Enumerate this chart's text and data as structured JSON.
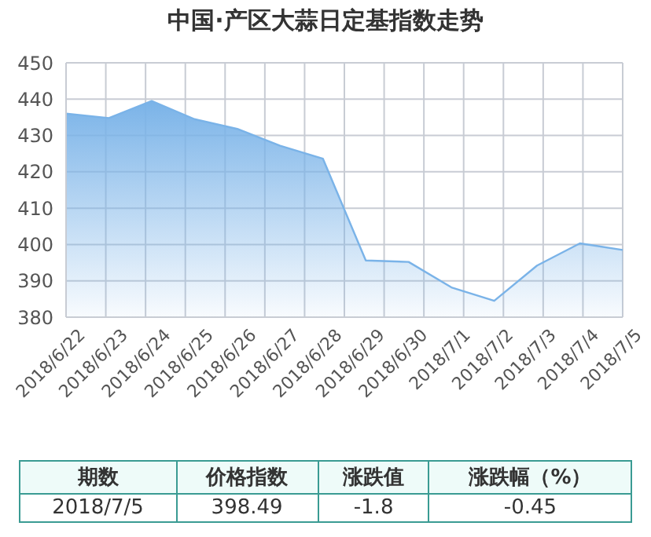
{
  "chart_data": {
    "type": "area",
    "title": "中国·产区大蒜日定基指数走势",
    "categories": [
      "2018/6/22",
      "2018/6/23",
      "2018/6/24",
      "2018/6/25",
      "2018/6/26",
      "2018/6/27",
      "2018/6/28",
      "2018/6/29",
      "2018/6/30",
      "2018/7/1",
      "2018/7/2",
      "2018/7/3",
      "2018/7/4",
      "2018/7/5"
    ],
    "values": [
      436,
      434.8,
      439.5,
      434.5,
      431.8,
      427.2,
      423.6,
      395.6,
      395.2,
      388.2,
      384.5,
      394.2,
      400.3,
      398.5
    ],
    "color": "#7ab3e8",
    "ylim": [
      380,
      450
    ],
    "yticks": [
      380,
      390,
      400,
      410,
      420,
      430,
      440,
      450
    ],
    "grid": true,
    "annotations": [
      "期数",
      "价格指数",
      "涨跌值",
      "涨跌幅（%）",
      "2018/7/5",
      "398.49",
      "-1.8",
      "-0.45"
    ]
  }
}
